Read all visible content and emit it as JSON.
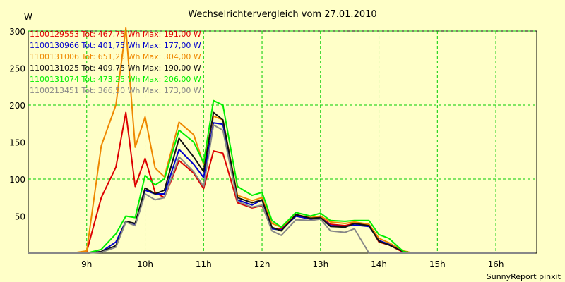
{
  "chart_data": {
    "type": "line",
    "title": "Wechselrichtervergleich vom 27.01.2010",
    "ylabel": "W",
    "xlabel": "",
    "ylim": [
      0,
      300
    ],
    "xlim": [
      8.0,
      16.7
    ],
    "y_ticks": [
      50,
      100,
      150,
      200,
      250,
      300
    ],
    "x_ticks": [
      {
        "value": 9,
        "label": "9h"
      },
      {
        "value": 10,
        "label": "10h"
      },
      {
        "value": 11,
        "label": "11h"
      },
      {
        "value": 12,
        "label": "12h"
      },
      {
        "value": 13,
        "label": "13h"
      },
      {
        "value": 14,
        "label": "14h"
      },
      {
        "value": 15,
        "label": "15h"
      },
      {
        "value": 16,
        "label": "16h"
      }
    ],
    "grid": true,
    "legend_position": "top-left",
    "x": [
      8.0,
      8.75,
      9.0,
      9.25,
      9.5,
      9.67,
      9.83,
      10.0,
      10.17,
      10.33,
      10.58,
      10.83,
      11.0,
      11.17,
      11.33,
      11.58,
      11.83,
      12.0,
      12.17,
      12.33,
      12.58,
      12.83,
      13.0,
      13.17,
      13.42,
      13.58,
      13.83,
      14.0,
      14.17,
      14.42,
      14.58,
      14.83,
      15.0,
      15.17,
      15.42,
      15.58,
      16.0,
      16.67
    ],
    "series": [
      {
        "name": "1100129553",
        "legend": "1100129553 Tot: 467,75 Wh Max: 191,00 W",
        "color": "#dd0000",
        "values": [
          0,
          0,
          2,
          75,
          116,
          190,
          90,
          128,
          82,
          75,
          125,
          108,
          87,
          138,
          135,
          68,
          61,
          64,
          33,
          33,
          50,
          46,
          48,
          39,
          37,
          40,
          38,
          15,
          11,
          1,
          0,
          0,
          0,
          0,
          0,
          0,
          0,
          0
        ]
      },
      {
        "name": "1100130966",
        "legend": "1100130966 Tot: 401,75 Wh Max: 177,00 W",
        "color": "#0000cc",
        "values": [
          0,
          0,
          0,
          2,
          15,
          43,
          38,
          85,
          80,
          80,
          140,
          120,
          102,
          176,
          174,
          72,
          65,
          72,
          33,
          31,
          50,
          46,
          48,
          37,
          36,
          38,
          36,
          17,
          12,
          2,
          0,
          0,
          0,
          0,
          0,
          0,
          0,
          0
        ]
      },
      {
        "name": "1100131006",
        "legend": "1100131006 Tot: 651,25 Wh Max: 304,00 W",
        "color": "#ee8800",
        "values": [
          0,
          0,
          3,
          145,
          200,
          304,
          143,
          184,
          115,
          103,
          177,
          160,
          120,
          185,
          180,
          78,
          71,
          75,
          40,
          35,
          52,
          48,
          50,
          42,
          40,
          42,
          39,
          20,
          14,
          3,
          0,
          0,
          0,
          0,
          0,
          0,
          0,
          0
        ]
      },
      {
        "name": "1100131025",
        "legend": "1100131025 Tot: 409,75 Wh Max: 190,00 W",
        "color": "#111111",
        "values": [
          0,
          0,
          0,
          2,
          10,
          43,
          40,
          88,
          80,
          85,
          155,
          130,
          110,
          190,
          180,
          75,
          68,
          72,
          35,
          30,
          52,
          47,
          48,
          36,
          35,
          40,
          37,
          16,
          11,
          2,
          0,
          0,
          0,
          0,
          0,
          0,
          0,
          0
        ]
      },
      {
        "name": "1100131074",
        "legend": "1100131074 Tot: 473,25 Wh Max: 206,00 W",
        "color": "#00ee00",
        "values": [
          0,
          0,
          0,
          5,
          26,
          50,
          48,
          105,
          92,
          100,
          166,
          150,
          122,
          206,
          200,
          90,
          78,
          82,
          44,
          35,
          55,
          50,
          54,
          44,
          43,
          44,
          44,
          25,
          20,
          2,
          0,
          0,
          0,
          0,
          0,
          0,
          0,
          0
        ]
      },
      {
        "name": "1100213451",
        "legend": "1100213451 Tot: 366,50 Wh Max: 173,00 W",
        "color": "#888888",
        "values": [
          0,
          0,
          0,
          1,
          8,
          42,
          37,
          80,
          72,
          75,
          130,
          110,
          90,
          173,
          166,
          70,
          62,
          65,
          30,
          24,
          45,
          44,
          46,
          30,
          28,
          33,
          0,
          0,
          0,
          0,
          0,
          0,
          0,
          0,
          0,
          0,
          0,
          0
        ]
      }
    ],
    "footer": "SunnyReport pinxit"
  }
}
